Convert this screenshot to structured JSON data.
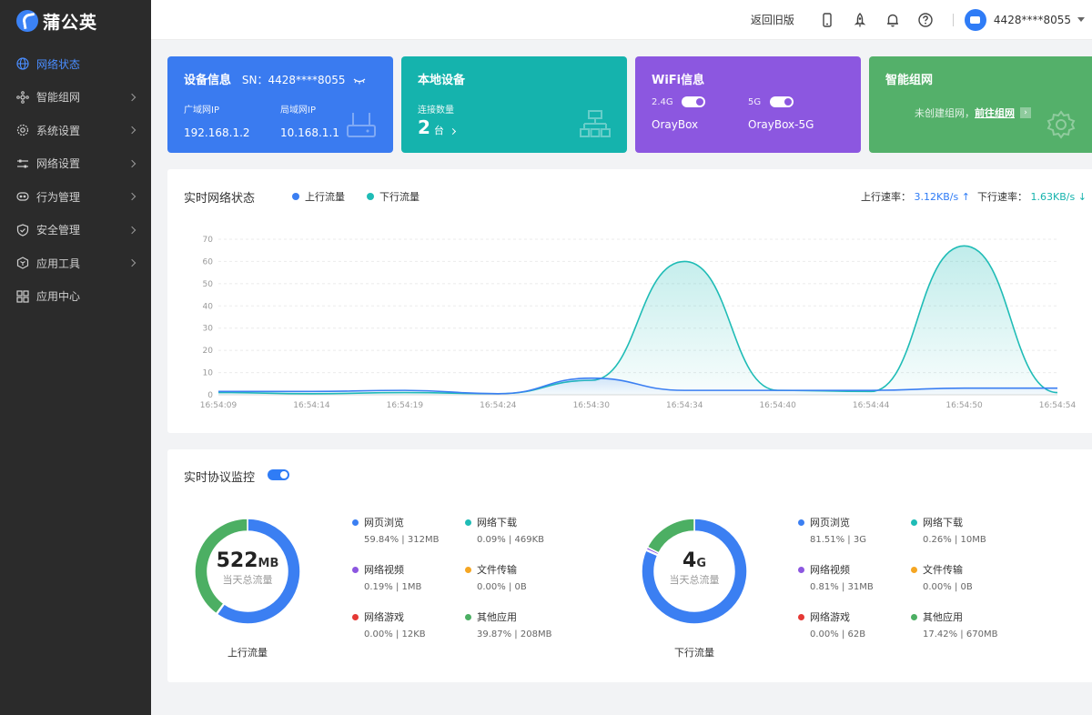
{
  "app": {
    "logo_text": "蒲公英"
  },
  "sidebar": {
    "items": [
      {
        "label": "网络状态",
        "icon": "globe-icon",
        "active": true,
        "has_chevron": false
      },
      {
        "label": "智能组网",
        "icon": "network-icon",
        "active": false,
        "has_chevron": true
      },
      {
        "label": "系统设置",
        "icon": "gear-icon",
        "active": false,
        "has_chevron": true
      },
      {
        "label": "网络设置",
        "icon": "sliders-icon",
        "active": false,
        "has_chevron": true
      },
      {
        "label": "行为管理",
        "icon": "eye-icon",
        "active": false,
        "has_chevron": true
      },
      {
        "label": "安全管理",
        "icon": "shield-icon",
        "active": false,
        "has_chevron": true
      },
      {
        "label": "应用工具",
        "icon": "hexagon-icon",
        "active": false,
        "has_chevron": true
      },
      {
        "label": "应用中心",
        "icon": "grid-icon",
        "active": false,
        "has_chevron": false
      }
    ]
  },
  "header": {
    "back_link": "返回旧版",
    "icons": [
      "phone-icon",
      "rocket-icon",
      "bell-icon",
      "help-icon"
    ],
    "user": "4428****8055"
  },
  "cards": {
    "device": {
      "title": "设备信息",
      "sn": "SN：4428****8055",
      "wan_label": "广域网IP",
      "wan_value": "192.168.1.2",
      "lan_label": "局域网IP",
      "lan_value": "10.168.1.1"
    },
    "local": {
      "title": "本地设备",
      "conn_label": "连接数量",
      "conn_count": "2",
      "conn_unit": "台"
    },
    "wifi": {
      "title": "WiFi信息",
      "band1": "2.4G",
      "ssid1": "OrayBox",
      "band2": "5G",
      "ssid2": "OrayBox-5G"
    },
    "mesh": {
      "title": "智能组网",
      "desc": "未创建组网，",
      "link": "前往组网"
    }
  },
  "network_panel": {
    "title": "实时网络状态",
    "legend_up": "上行流量",
    "legend_down": "下行流量",
    "up_rate_label": "上行速率：",
    "up_rate_value": "3.12KB/s",
    "down_rate_label": "下行速率：",
    "down_rate_value": "1.63KB/s"
  },
  "chart_data": {
    "type": "area",
    "x": [
      "16:54:09",
      "16:54:14",
      "16:54:19",
      "16:54:24",
      "16:54:30",
      "16:54:34",
      "16:54:40",
      "16:54:44",
      "16:54:50",
      "16:54:54"
    ],
    "series": [
      {
        "name": "上行流量",
        "color": "#3b7ff2",
        "values": [
          1.5,
          1.5,
          2,
          0.5,
          7.5,
          2,
          2,
          2,
          3,
          3
        ]
      },
      {
        "name": "下行流量",
        "color": "#1fbcb6",
        "values": [
          1,
          0.5,
          1,
          0.5,
          6.5,
          60,
          2,
          1.5,
          67,
          1
        ]
      }
    ],
    "yticks": [
      0,
      10,
      20,
      30,
      40,
      50,
      60,
      70
    ],
    "ylim": [
      0,
      70
    ],
    "grid": true
  },
  "protocol_panel": {
    "title": "实时协议监控",
    "upload": {
      "total": "522",
      "unit": "MB",
      "sub": "当天总流量",
      "caption": "上行流量",
      "items": [
        {
          "name": "网页浏览",
          "value": "59.84%  |  312MB",
          "color": "#3b7ff2",
          "pct": 59.84
        },
        {
          "name": "网络下载",
          "value": "0.09%  |  469KB",
          "color": "#1fbcb6",
          "pct": 0.09
        },
        {
          "name": "网络视频",
          "value": "0.19%  |  1MB",
          "color": "#8c57e0",
          "pct": 0.19
        },
        {
          "name": "文件传输",
          "value": "0.00%  |  0B",
          "color": "#f5a623",
          "pct": 0
        },
        {
          "name": "网络游戏",
          "value": "0.00%  |  12KB",
          "color": "#e53935",
          "pct": 0
        },
        {
          "name": "其他应用",
          "value": "39.87%  |  208MB",
          "color": "#4caf63",
          "pct": 39.87
        }
      ]
    },
    "download": {
      "total": "4",
      "unit": "G",
      "sub": "当天总流量",
      "caption": "下行流量",
      "items": [
        {
          "name": "网页浏览",
          "value": "81.51%  |  3G",
          "color": "#3b7ff2",
          "pct": 81.51
        },
        {
          "name": "网络下载",
          "value": "0.26%  |  10MB",
          "color": "#1fbcb6",
          "pct": 0.26
        },
        {
          "name": "网络视频",
          "value": "0.81%  |  31MB",
          "color": "#8c57e0",
          "pct": 0.81
        },
        {
          "name": "文件传输",
          "value": "0.00%  |  0B",
          "color": "#f5a623",
          "pct": 0
        },
        {
          "name": "网络游戏",
          "value": "0.00%  |  62B",
          "color": "#e53935",
          "pct": 0
        },
        {
          "name": "其他应用",
          "value": "17.42%  |  670MB",
          "color": "#4caf63",
          "pct": 17.42
        }
      ]
    }
  }
}
